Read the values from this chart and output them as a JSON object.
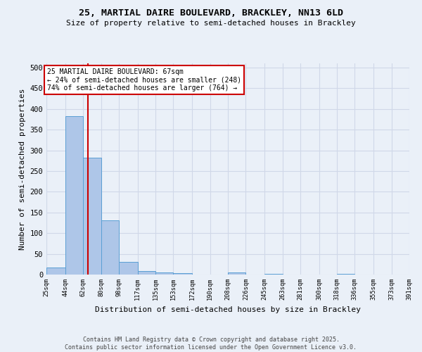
{
  "title_line1": "25, MARTIAL DAIRE BOULEVARD, BRACKLEY, NN13 6LD",
  "title_line2": "Size of property relative to semi-detached houses in Brackley",
  "xlabel": "Distribution of semi-detached houses by size in Brackley",
  "ylabel": "Number of semi-detached properties",
  "footer_line1": "Contains HM Land Registry data © Crown copyright and database right 2025.",
  "footer_line2": "Contains public sector information licensed under the Open Government Licence v3.0.",
  "annotation_line1": "25 MARTIAL DAIRE BOULEVARD: 67sqm",
  "annotation_line2": "← 24% of semi-detached houses are smaller (248)",
  "annotation_line3": "74% of semi-detached houses are larger (764) →",
  "bar_color": "#aec6e8",
  "bar_edge_color": "#5a9fd4",
  "grid_color": "#d0d8e8",
  "bg_color": "#eaf0f8",
  "red_line_color": "#cc0000",
  "annotation_box_color": "#cc0000",
  "bins": [
    25,
    44,
    62,
    80,
    98,
    117,
    135,
    153,
    172,
    190,
    208,
    226,
    245,
    263,
    281,
    300,
    318,
    336,
    355,
    373,
    391
  ],
  "bin_labels": [
    "25sqm",
    "44sqm",
    "62sqm",
    "80sqm",
    "98sqm",
    "117sqm",
    "135sqm",
    "153sqm",
    "172sqm",
    "190sqm",
    "208sqm",
    "226sqm",
    "245sqm",
    "263sqm",
    "281sqm",
    "300sqm",
    "318sqm",
    "336sqm",
    "355sqm",
    "373sqm",
    "391sqm"
  ],
  "bar_heights": [
    17,
    383,
    283,
    131,
    30,
    8,
    5,
    3,
    0,
    0,
    5,
    0,
    2,
    0,
    0,
    0,
    2,
    0,
    0,
    0
  ],
  "red_line_x": 67,
  "ylim": [
    0,
    510
  ],
  "yticks": [
    0,
    50,
    100,
    150,
    200,
    250,
    300,
    350,
    400,
    450,
    500
  ]
}
